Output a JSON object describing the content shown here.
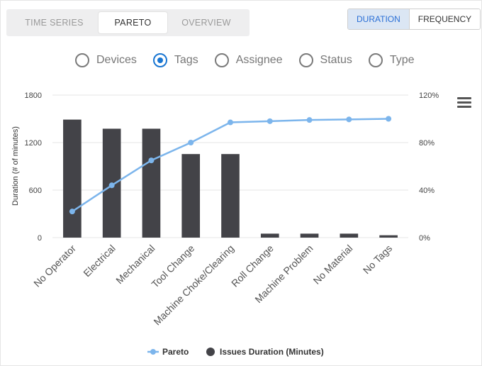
{
  "tabs": [
    {
      "label": "TIME SERIES",
      "active": false
    },
    {
      "label": "PARETO",
      "active": true
    },
    {
      "label": "OVERVIEW",
      "active": false
    }
  ],
  "toggle": [
    {
      "label": "DURATION",
      "active": true
    },
    {
      "label": "FREQUENCY",
      "active": false
    }
  ],
  "group_by": [
    {
      "label": "Devices",
      "checked": false
    },
    {
      "label": "Tags",
      "checked": true
    },
    {
      "label": "Assignee",
      "checked": false
    },
    {
      "label": "Status",
      "checked": false
    },
    {
      "label": "Type",
      "checked": false
    }
  ],
  "menu_icon": "hamburger-menu-icon",
  "colors": {
    "bar": "#434348",
    "line": "#7cb5ec",
    "grid": "#e6e6e6",
    "accent": "#1976d2"
  },
  "chart_data": {
    "type": "bar",
    "categories": [
      "No Operator",
      "Electrical",
      "Mechanical",
      "Tool Change",
      "Machine Choke/Clearing",
      "Roll Change",
      "Machine Problem",
      "No Material",
      "No Tags"
    ],
    "series": [
      {
        "name": "Issues Duration (Minutes)",
        "type": "bar",
        "axis": "left",
        "values": [
          1490,
          1375,
          1375,
          1055,
          1055,
          50,
          50,
          50,
          30
        ]
      },
      {
        "name": "Pareto",
        "type": "line",
        "axis": "right",
        "values": [
          22,
          44,
          65,
          80,
          97,
          98,
          99,
          99.5,
          100
        ]
      }
    ],
    "ylabel": "Duration (# of minutes)",
    "ylim": [
      0,
      1800
    ],
    "yticks": [
      "0",
      "600",
      "1200",
      "1800"
    ],
    "y2lim": [
      0,
      120
    ],
    "y2ticks": [
      "0%",
      "40%",
      "80%",
      "120%"
    ],
    "grid": true,
    "legend_position": "bottom",
    "legend": [
      "Pareto",
      "Issues Duration (Minutes)"
    ]
  }
}
